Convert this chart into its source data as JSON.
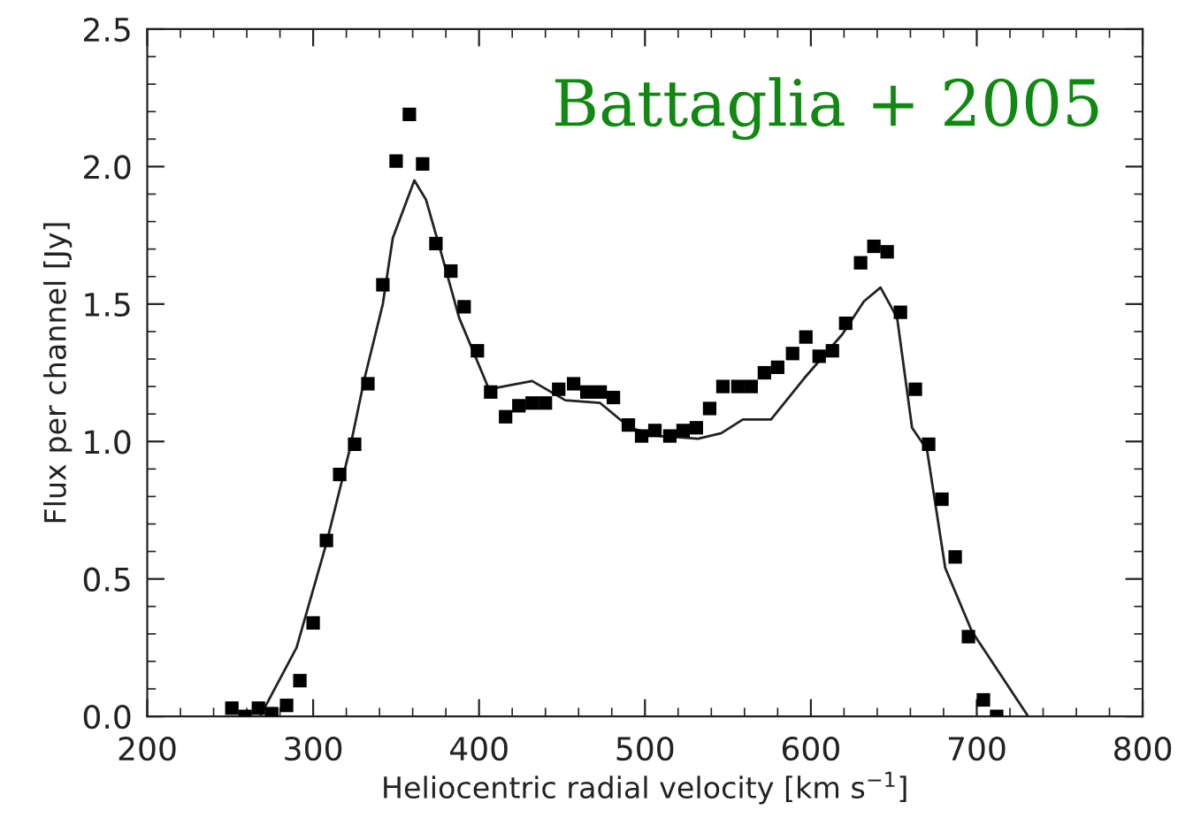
{
  "chart_data": {
    "type": "scatter",
    "xlabel": "Heliocentric radial velocity [km s$^{−1}$]",
    "ylabel": "Flux per channel [Jy]",
    "annotations": [
      "Battaglia + 2005"
    ],
    "xlim": [
      200,
      800
    ],
    "ylim": [
      0,
      2.5
    ],
    "xticks": [
      200,
      300,
      400,
      500,
      600,
      700,
      800
    ],
    "yticks": [
      {
        "value": 0,
        "label": "0.0"
      },
      0.5,
      {
        "value": 1,
        "label": "1.0"
      },
      1.5,
      {
        "value": 2,
        "label": "2.0"
      },
      2.5
    ],
    "grid": false,
    "legend": false,
    "series": [
      {
        "marker": "square",
        "color": "#000000",
        "x": [
          251,
          259,
          267,
          275,
          284,
          292,
          300,
          308,
          316,
          325,
          333,
          342,
          350,
          358,
          366,
          374,
          383,
          391,
          399,
          407,
          416,
          424,
          432,
          440,
          448,
          457,
          465,
          473,
          481,
          490,
          498,
          506,
          515,
          523,
          531,
          539,
          547,
          556,
          564,
          572,
          580,
          589,
          597,
          605,
          613,
          621,
          630,
          638,
          646,
          654,
          663,
          671,
          679,
          687,
          695,
          704,
          712
        ],
        "values": [
          0.03,
          0.0,
          0.03,
          0.01,
          0.04,
          0.13,
          0.34,
          0.64,
          0.88,
          0.99,
          1.21,
          1.57,
          2.02,
          2.19,
          2.01,
          1.72,
          1.62,
          1.49,
          1.33,
          1.18,
          1.09,
          1.13,
          1.14,
          1.14,
          1.19,
          1.21,
          1.18,
          1.18,
          1.16,
          1.06,
          1.02,
          1.04,
          1.02,
          1.04,
          1.05,
          1.12,
          1.2,
          1.2,
          1.2,
          1.25,
          1.27,
          1.32,
          1.38,
          1.31,
          1.33,
          1.43,
          1.65,
          1.71,
          1.69,
          1.47,
          1.19,
          0.99,
          0.79,
          0.58,
          0.29,
          0.06,
          0.0
        ]
      },
      {
        "type": "line",
        "marker": "none",
        "line_style": "solid",
        "color": "#222222",
        "x": [
          268,
          290,
          308,
          322,
          331,
          342,
          348,
          361,
          368,
          377,
          388,
          406,
          432,
          452,
          473,
          491,
          509,
          532,
          546,
          559,
          576,
          596,
          619,
          632,
          642,
          652,
          661,
          670,
          681,
          697,
          731
        ],
        "values": [
          0,
          0.25,
          0.63,
          0.97,
          1.23,
          1.5,
          1.74,
          1.95,
          1.88,
          1.69,
          1.45,
          1.19,
          1.22,
          1.15,
          1.14,
          1.05,
          1.02,
          1.01,
          1.03,
          1.08,
          1.08,
          1.23,
          1.39,
          1.51,
          1.56,
          1.45,
          1.05,
          0.97,
          0.54,
          0.31,
          0
        ]
      }
    ]
  }
}
